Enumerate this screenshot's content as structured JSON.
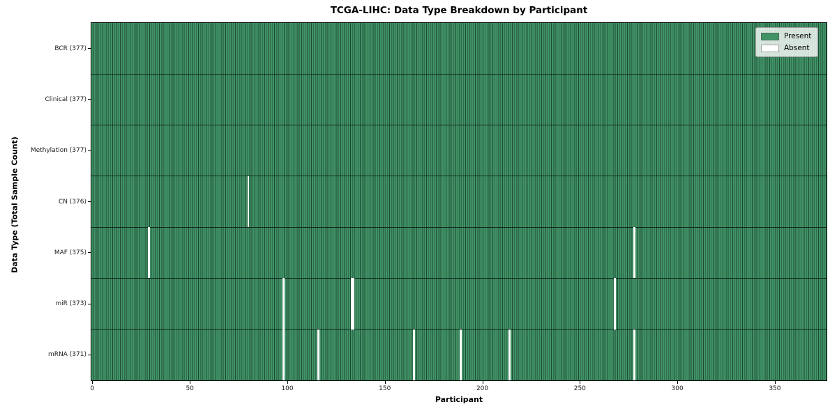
{
  "chart_data": {
    "type": "heatmap",
    "title": "TCGA-LIHC: Data Type Breakdown by Participant",
    "xlabel": "Participant",
    "ylabel": "Data Type (Total Sample Count)",
    "n_participants": 377,
    "x_ticks": [
      0,
      50,
      100,
      150,
      200,
      250,
      300,
      350
    ],
    "rows": [
      {
        "label": "BCR (377)",
        "data_type": "BCR",
        "present_count": 377,
        "absent_participants": []
      },
      {
        "label": "Clinical (377)",
        "data_type": "Clinical",
        "present_count": 377,
        "absent_participants": []
      },
      {
        "label": "Methylation (377)",
        "data_type": "Methylation",
        "present_count": 377,
        "absent_participants": []
      },
      {
        "label": "CN (376)",
        "data_type": "CN",
        "present_count": 376,
        "absent_participants": [
          80
        ]
      },
      {
        "label": "MAF (375)",
        "data_type": "MAF",
        "present_count": 375,
        "absent_participants": [
          29,
          278
        ]
      },
      {
        "label": "miR (373)",
        "data_type": "miR",
        "present_count": 373,
        "absent_participants": [
          98,
          133,
          134,
          268
        ]
      },
      {
        "label": "mRNA (371)",
        "data_type": "mRNA",
        "present_count": 371,
        "absent_participants": [
          98,
          116,
          165,
          189,
          214,
          278
        ]
      }
    ],
    "legend": [
      {
        "label": "Present",
        "color": "#419266"
      },
      {
        "label": "Absent",
        "color": "#ffffff"
      }
    ],
    "colors": {
      "present": "#419266",
      "grid_line": "#1d4a33",
      "row_separator": "#102c1e",
      "absent": "#ffffff",
      "spine": "#000000"
    },
    "legend_position": "upper right",
    "grid": "on"
  }
}
